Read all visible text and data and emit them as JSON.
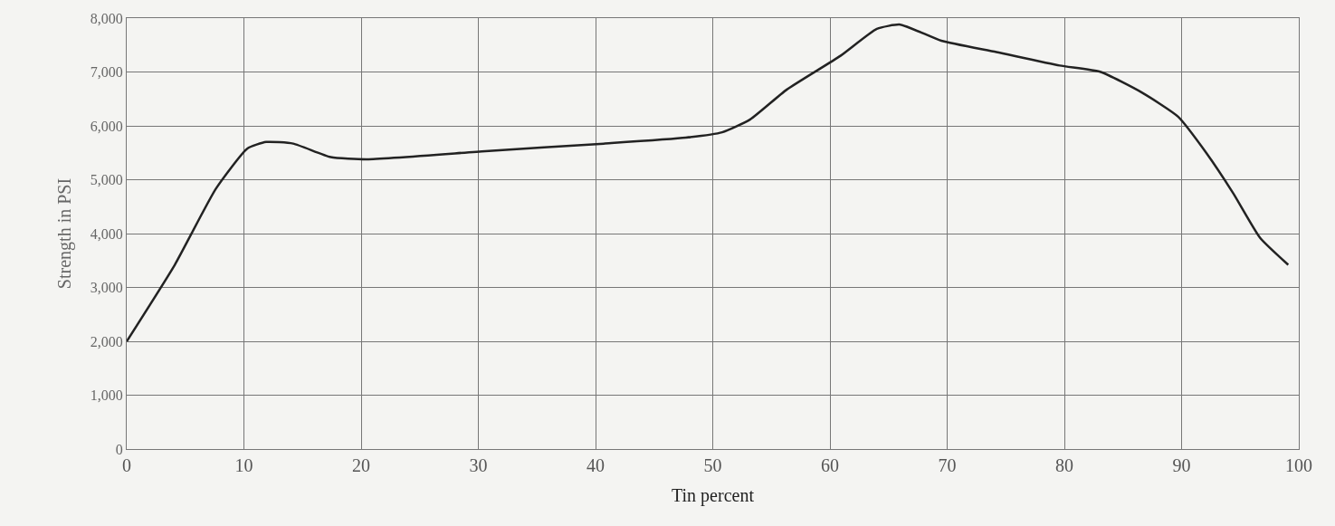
{
  "chart_data": {
    "type": "line",
    "xlabel": "Tin percent",
    "ylabel": "Strength in PSI",
    "x": [
      0,
      4.1,
      7.6,
      10.3,
      11.9,
      14.2,
      17.4,
      20.5,
      30.6,
      40.7,
      47.7,
      50.8,
      53.2,
      56.3,
      60.9,
      64,
      66,
      69.5,
      74.2,
      79.6,
      83.1,
      86.6,
      89.7,
      92.1,
      94.4,
      96.7,
      99.1
    ],
    "series": [
      {
        "color": "#222222",
        "values": [
          2000,
          3420,
          4830,
          5580,
          5700,
          5670,
          5420,
          5380,
          5530,
          5670,
          5780,
          5880,
          6120,
          6670,
          7300,
          7800,
          7880,
          7580,
          7370,
          7120,
          7000,
          6620,
          6170,
          5500,
          4750,
          3920,
          3420
        ]
      }
    ],
    "xlim": [
      0,
      100
    ],
    "xticks": [
      0,
      10,
      20,
      30,
      40,
      50,
      60,
      70,
      80,
      90,
      100
    ],
    "ylim": [
      0,
      8000
    ],
    "yticks": [
      {
        "value": 0,
        "label": "0"
      },
      {
        "value": 1000,
        "label": "1,000"
      },
      {
        "value": 2000,
        "label": "2,000"
      },
      {
        "value": 3000,
        "label": "3,000"
      },
      {
        "value": 4000,
        "label": "4,000"
      },
      {
        "value": 5000,
        "label": "5,000"
      },
      {
        "value": 6000,
        "label": "6,000"
      },
      {
        "value": 7000,
        "label": "7,000"
      },
      {
        "value": 8000,
        "label": "8,000"
      }
    ],
    "grid": true,
    "legend": false,
    "marker": "none",
    "line_style": "solid"
  }
}
